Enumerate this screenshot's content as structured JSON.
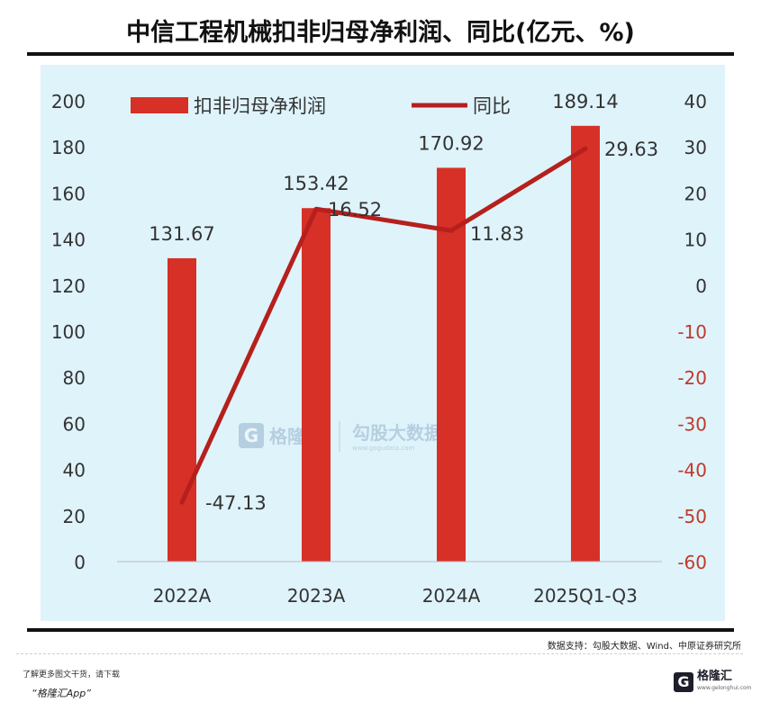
{
  "title": "中信工程机械扣非归母净利润、同比(亿元、%)",
  "source": "数据支持：勾股大数据、Wind、中原证券研究所",
  "footer": {
    "note": "了解更多图文干货，请下载",
    "app": "“格隆汇App”",
    "logo_mark": "G",
    "logo_name": "格隆汇",
    "logo_url": "www.gelonghui.com"
  },
  "watermark": {
    "brand1": "格隆汇",
    "brand2": "勾股大数据",
    "brand2_url": "www.gogudata.com"
  },
  "chart_data": {
    "type": "bar",
    "categories": [
      "2022A",
      "2023A",
      "2024A",
      "2025Q1-Q3"
    ],
    "series": [
      {
        "name": "扣非归母净利润",
        "type": "bar",
        "axis": "left",
        "values": [
          131.67,
          153.42,
          170.92,
          189.14
        ],
        "labels": [
          "131.67",
          "153.42",
          "170.92",
          "189.14"
        ]
      },
      {
        "name": "同比",
        "type": "line",
        "axis": "right",
        "values": [
          -47.13,
          16.52,
          11.83,
          29.63
        ],
        "labels": [
          "-47.13",
          "16.52",
          "11.83",
          "29.63"
        ]
      }
    ],
    "y_left": {
      "min": 0,
      "max": 200,
      "step": 20,
      "ticks": [
        "0",
        "20",
        "40",
        "60",
        "80",
        "100",
        "120",
        "140",
        "160",
        "180",
        "200"
      ]
    },
    "y_right": {
      "min": -60,
      "max": 40,
      "step": 10,
      "ticks": [
        "-60",
        "-50",
        "-40",
        "-30",
        "-20",
        "-10",
        "0",
        "10",
        "20",
        "30",
        "40"
      ]
    },
    "legend_position": "top",
    "colors": {
      "bar": "#d63027",
      "line": "#b5201d",
      "background": "#dff3fb",
      "negative_tick": "#c0392b",
      "text": "#333333"
    }
  }
}
